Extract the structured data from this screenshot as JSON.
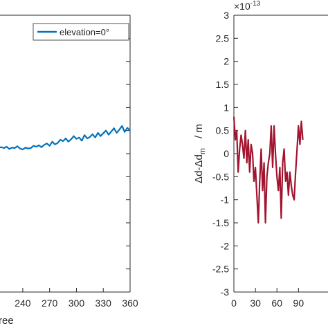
{
  "chart_data": [
    {
      "type": "line",
      "title": "",
      "xlabel": "ree",
      "ylabel": "",
      "x_ticks": [
        "240",
        "270",
        "300",
        "330",
        "360"
      ],
      "xlim": [
        213,
        360
      ],
      "legend": {
        "placement": "top-right",
        "entries": [
          "elevation=0°"
        ]
      },
      "series": [
        {
          "name": "elevation=0°",
          "color": "#0072bd",
          "x": [
            213,
            216,
            219,
            222,
            225,
            228,
            231,
            234,
            237,
            240,
            243,
            246,
            249,
            252,
            255,
            258,
            261,
            264,
            267,
            270,
            273,
            276,
            279,
            282,
            285,
            288,
            291,
            294,
            297,
            300,
            303,
            306,
            309,
            312,
            315,
            318,
            321,
            324,
            327,
            330,
            333,
            336,
            339,
            342,
            345,
            348,
            351,
            354,
            357,
            360
          ],
          "y": [
            0.13,
            0.14,
            0.12,
            0.15,
            0.1,
            0.13,
            0.12,
            0.16,
            0.11,
            0.09,
            0.13,
            0.11,
            0.12,
            0.17,
            0.15,
            0.18,
            0.14,
            0.19,
            0.22,
            0.17,
            0.26,
            0.2,
            0.23,
            0.3,
            0.27,
            0.33,
            0.26,
            0.31,
            0.38,
            0.32,
            0.35,
            0.28,
            0.4,
            0.33,
            0.36,
            0.42,
            0.35,
            0.45,
            0.38,
            0.44,
            0.5,
            0.41,
            0.48,
            0.55,
            0.45,
            0.52,
            0.6,
            0.47,
            0.56,
            0.5
          ]
        }
      ]
    },
    {
      "type": "line",
      "title": "",
      "xlabel": "",
      "ylabel": "Δd-Δd",
      "ylabel_subscript": "m",
      "ylabel_unit": "/ m",
      "y_exponent": "×10",
      "y_exponent_power": "-13",
      "ylim": [
        -3,
        3
      ],
      "y_ticks": [
        "3",
        "2.5",
        "2",
        "1.5",
        "1",
        "0.5",
        "0",
        "-0.5",
        "-1",
        "-1.5",
        "-2",
        "-2.5",
        "-3"
      ],
      "x_ticks": [
        "0",
        "30",
        "60",
        "90"
      ],
      "xlim": [
        0,
        135
      ],
      "series": [
        {
          "name": "",
          "color": "#a2142f",
          "x": [
            0,
            2,
            4,
            6,
            8,
            10,
            12,
            14,
            16,
            18,
            20,
            22,
            24,
            26,
            28,
            30,
            32,
            34,
            36,
            38,
            40,
            42,
            44,
            46,
            48,
            50,
            52,
            54,
            56,
            58,
            60,
            62,
            64,
            66,
            68,
            70,
            72,
            74,
            76,
            78,
            80,
            82,
            84,
            86,
            88,
            90,
            92,
            94,
            96
          ],
          "y": [
            0.8,
            0.3,
            0.5,
            -0.4,
            0.1,
            0.4,
            0.2,
            -0.1,
            0.5,
            -0.2,
            0.3,
            -0.4,
            0.2,
            0.0,
            -0.6,
            -0.3,
            -0.9,
            -1.5,
            -0.6,
            0.1,
            -0.8,
            -0.2,
            -1.5,
            -0.5,
            -0.2,
            0.0,
            0.6,
            -0.3,
            0.6,
            0.0,
            -0.5,
            -0.8,
            -0.3,
            -1.4,
            -0.2,
            0.1,
            -0.6,
            -0.4,
            -0.9,
            -0.4,
            -0.7,
            -0.9,
            -1.0,
            -0.4,
            0.1,
            0.6,
            0.2,
            0.7,
            0.3
          ]
        }
      ]
    }
  ]
}
